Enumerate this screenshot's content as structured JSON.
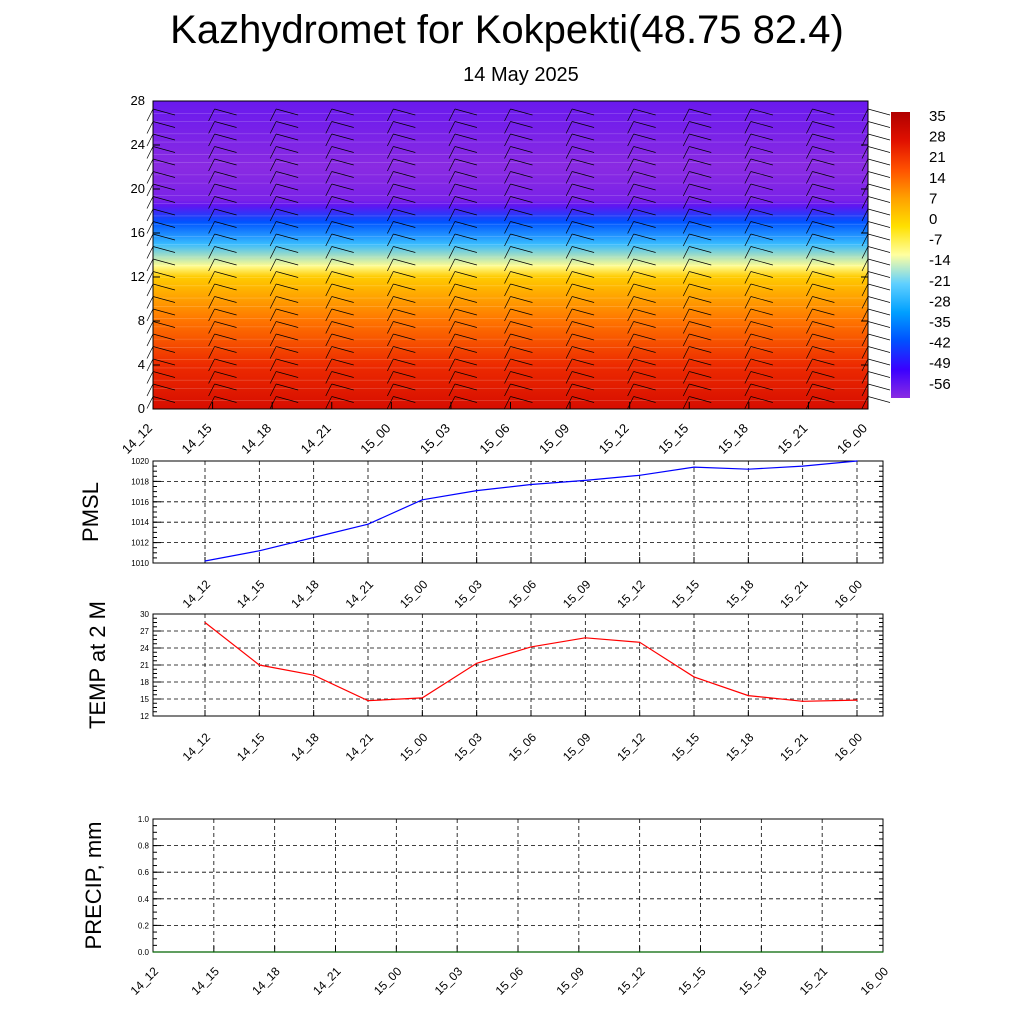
{
  "title": "Kazhydromet for Kokpekti(48.75 82.4)",
  "subtitle": "14 May 2025",
  "colors": {
    "pmsl_line": "#0000ff",
    "temp_line": "#ff0000",
    "precip_line": "#006400",
    "palette": [
      "#8a2be2",
      "#3a00ff",
      "#0050ff",
      "#00a0ff",
      "#60d0ff",
      "#ffffa0",
      "#ffe000",
      "#ffa000",
      "#ff5000",
      "#e01000",
      "#b00000"
    ]
  },
  "chart_data": [
    {
      "type": "heatmap",
      "name": "vertical-profile",
      "x_ticks": [
        "14_12",
        "14_15",
        "14_18",
        "14_21",
        "15_00",
        "15_03",
        "15_06",
        "15_09",
        "15_12",
        "15_15",
        "15_18",
        "15_21",
        "16_00"
      ],
      "y_ticks": [
        "0",
        "4",
        "8",
        "12",
        "16",
        "20",
        "24",
        "28"
      ],
      "ylim": [
        0,
        28
      ],
      "colorbar": {
        "labels": [
          "35",
          "28",
          "21",
          "14",
          "7",
          "0",
          "-7",
          "-14",
          "-21",
          "-28",
          "-35",
          "-42",
          "-49",
          "-56"
        ],
        "range": [
          -60,
          38
        ]
      },
      "profile_levels": [
        0,
        4,
        8,
        12,
        13,
        15,
        17,
        18.5,
        19,
        22,
        28
      ],
      "profile_values": [
        30,
        24,
        14,
        2,
        -10,
        -25,
        -40,
        -55,
        -58,
        -60,
        -56
      ]
    },
    {
      "type": "line",
      "name": "pmsl",
      "ylabel": "PMSL",
      "x": [
        "14_12",
        "14_15",
        "14_18",
        "14_21",
        "15_00",
        "15_03",
        "15_06",
        "15_09",
        "15_12",
        "15_15",
        "15_18",
        "15_21",
        "16_00"
      ],
      "values": [
        1010.2,
        1011.2,
        1012.5,
        1013.8,
        1016.2,
        1017.1,
        1017.7,
        1018.1,
        1018.6,
        1019.4,
        1019.2,
        1019.5,
        1020.0
      ],
      "ylim": [
        1010,
        1020
      ],
      "y_ticks": [
        "1010",
        "1012",
        "1014",
        "1016",
        "1018",
        "1020"
      ]
    },
    {
      "type": "line",
      "name": "temp2m",
      "ylabel": "TEMP at 2 M",
      "x": [
        "14_12",
        "14_15",
        "14_18",
        "14_21",
        "15_00",
        "15_03",
        "15_06",
        "15_09",
        "15_12",
        "15_15",
        "15_18",
        "15_21",
        "16_00"
      ],
      "values": [
        28.5,
        21.0,
        19.2,
        14.7,
        15.2,
        21.3,
        24.2,
        25.8,
        25.0,
        18.9,
        15.6,
        14.6,
        14.8
      ],
      "ylim": [
        12,
        30
      ],
      "y_ticks": [
        "12",
        "15",
        "18",
        "21",
        "24",
        "27",
        "30"
      ]
    },
    {
      "type": "line",
      "name": "precip",
      "ylabel": "PRECIP, mm",
      "x": [
        "14_12",
        "14_15",
        "14_18",
        "14_21",
        "15_00",
        "15_03",
        "15_06",
        "15_09",
        "15_12",
        "15_15",
        "15_18",
        "15_21",
        "16_00"
      ],
      "values": [
        0,
        0,
        0,
        0,
        0,
        0,
        0,
        0,
        0,
        0,
        0,
        0,
        0
      ],
      "ylim": [
        0,
        1
      ],
      "y_ticks": [
        "0.0",
        "0.2",
        "0.4",
        "0.6",
        "0.8",
        "1.0"
      ]
    }
  ]
}
